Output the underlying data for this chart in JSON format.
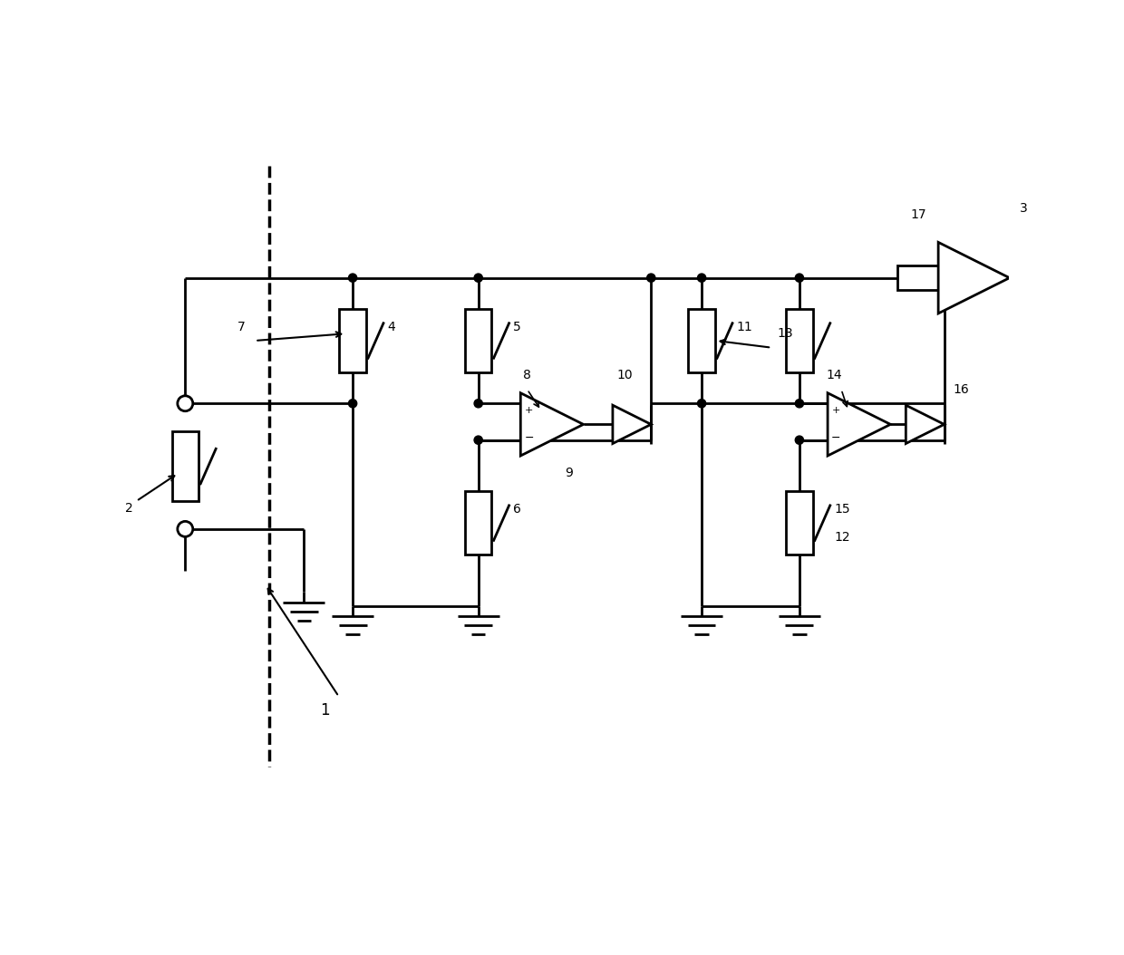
{
  "bg_color": "#ffffff",
  "line_color": "#000000",
  "lw": 2.0,
  "fig_width": 12.4,
  "fig_height": 10.54,
  "dpi": 100,
  "xlim": [
    0,
    124
  ],
  "ylim": [
    0,
    105.4
  ]
}
